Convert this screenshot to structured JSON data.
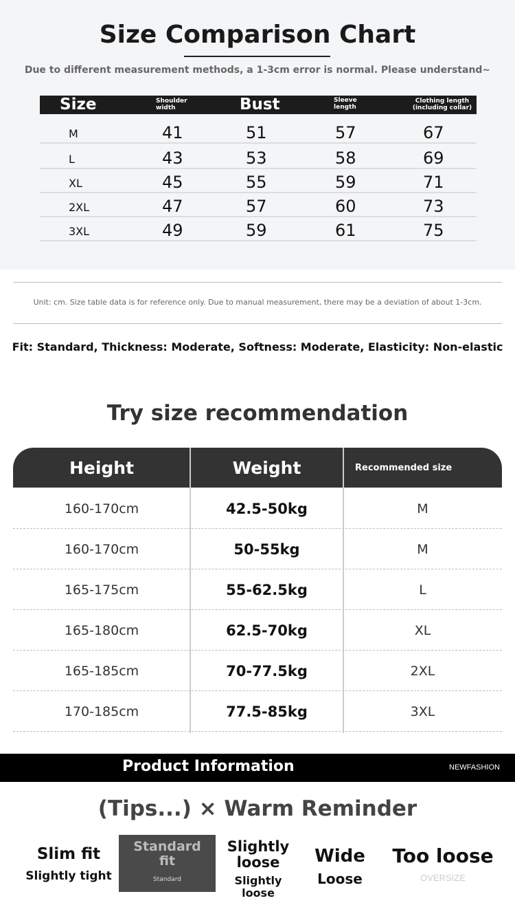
{
  "size_chart": {
    "title": "Size Comparison Chart",
    "subtitle": "Due to different measurement methods, a 1-3cm error is normal. Please understand~",
    "headers": [
      "Size",
      "Shoulder width",
      "Bust",
      "Sleeve length",
      "Clothing length (including collar)"
    ],
    "rows": [
      [
        "M",
        "41",
        "51",
        "57",
        "67"
      ],
      [
        "L",
        "43",
        "53",
        "58",
        "69"
      ],
      [
        "XL",
        "45",
        "55",
        "59",
        "71"
      ],
      [
        "2XL",
        "47",
        "57",
        "60",
        "73"
      ],
      [
        "3XL",
        "49",
        "59",
        "61",
        "75"
      ]
    ]
  },
  "note": "Unit: cm. Size table data is for reference only. Due to manual measurement, there may be a deviation of about 1-3cm.",
  "fit_info": "Fit: Standard, Thickness: Moderate, Softness: Moderate, Elasticity: Non-elastic",
  "recommendation": {
    "title": "Try size recommendation",
    "headers": [
      "Height",
      "Weight",
      "Recommended size"
    ],
    "rows": [
      [
        "160-170cm",
        "42.5-50kg",
        "M"
      ],
      [
        "160-170cm",
        "50-55kg",
        "M"
      ],
      [
        "165-175cm",
        "55-62.5kg",
        "L"
      ],
      [
        "165-180cm",
        "62.5-70kg",
        "XL"
      ],
      [
        "165-185cm",
        "70-77.5kg",
        "2XL"
      ],
      [
        "170-185cm",
        "77.5-85kg",
        "3XL"
      ]
    ]
  },
  "product_band": {
    "title": "Product Information",
    "brand": "NEWFASHION"
  },
  "tips": {
    "title": "(Tips...) × Warm Reminder",
    "items": [
      {
        "label": "Slim fit",
        "sub": "Slightly tight"
      },
      {
        "label": "Standard fit",
        "sub": "Standard"
      },
      {
        "label": "Slightly loose",
        "sub": "Slightly loose"
      },
      {
        "label": "Wide",
        "sub": "Loose"
      },
      {
        "label": "Too loose",
        "sub": "OVERSIZE"
      }
    ]
  }
}
